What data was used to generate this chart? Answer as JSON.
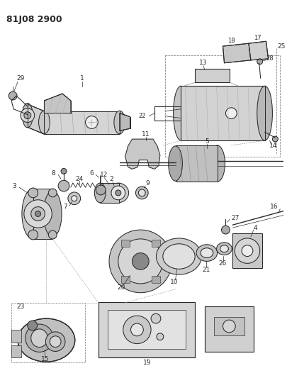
{
  "title": "81J08 2900",
  "bg_color": "#ffffff",
  "lc": "#2a2a2a",
  "fig_width": 4.05,
  "fig_height": 5.33,
  "dpi": 100
}
